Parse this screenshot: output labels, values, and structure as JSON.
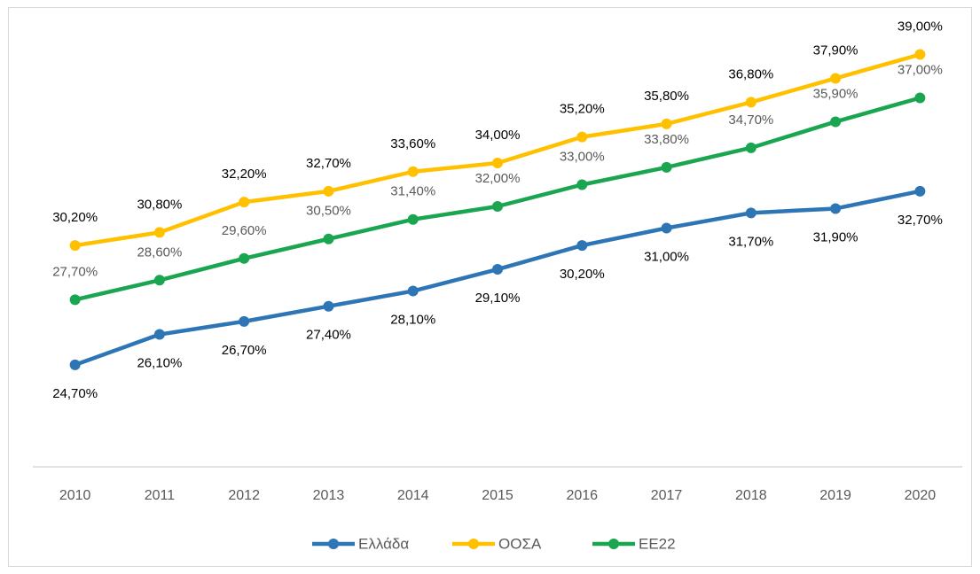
{
  "chart_data": {
    "type": "line",
    "categories": [
      "2010",
      "2011",
      "2012",
      "2013",
      "2014",
      "2015",
      "2016",
      "2017",
      "2018",
      "2019",
      "2020"
    ],
    "ylim": [
      20,
      40
    ],
    "legend": "bottom",
    "series": [
      {
        "name": "Ελλάδα",
        "color": "#2e75b6",
        "label_color": "#000000",
        "label_position": "below",
        "values": [
          24.7,
          26.1,
          26.7,
          27.4,
          28.1,
          29.1,
          30.2,
          31.0,
          31.7,
          31.9,
          32.7
        ],
        "value_labels": [
          "24,70%",
          "26,10%",
          "26,70%",
          "27,40%",
          "28,10%",
          "29,10%",
          "30,20%",
          "31,00%",
          "31,70%",
          "31,90%",
          "32,70%"
        ]
      },
      {
        "name": "ΟΟΣΑ",
        "color": "#ffc000",
        "label_color": "#000000",
        "label_position": "above",
        "values": [
          30.2,
          30.8,
          32.2,
          32.7,
          33.6,
          34.0,
          35.2,
          35.8,
          36.8,
          37.9,
          39.0
        ],
        "value_labels": [
          "30,20%",
          "30,80%",
          "32,20%",
          "32,70%",
          "33,60%",
          "34,00%",
          "35,20%",
          "35,80%",
          "36,80%",
          "37,90%",
          "39,00%"
        ]
      },
      {
        "name": "ΕΕ22",
        "color": "#1aa550",
        "label_color": "#595959",
        "label_position": "above",
        "values": [
          27.7,
          28.6,
          29.6,
          30.5,
          31.4,
          32.0,
          33.0,
          33.8,
          34.7,
          35.9,
          37.0
        ],
        "value_labels": [
          "27,70%",
          "28,60%",
          "29,60%",
          "30,50%",
          "31,40%",
          "32,00%",
          "33,00%",
          "33,80%",
          "34,70%",
          "35,90%",
          "37,00%"
        ]
      }
    ]
  }
}
